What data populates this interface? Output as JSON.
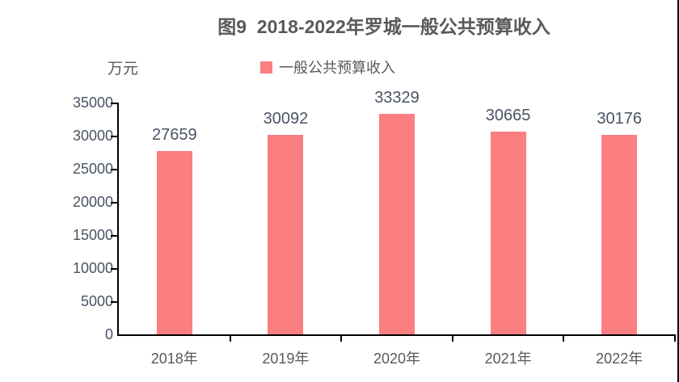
{
  "chart": {
    "title": "图9  2018-2022年罗城一般公共预算收入",
    "unit": "万元",
    "legend": "一般公共预算收入"
  },
  "chart_data": {
    "type": "bar",
    "title": "图9 2018-2022年罗城一般公共预算收入",
    "categories": [
      "2018年",
      "2019年",
      "2020年",
      "2021年",
      "2022年"
    ],
    "series": [
      {
        "name": "一般公共预算收入",
        "values": [
          27659,
          30092,
          33329,
          30665,
          30176
        ]
      }
    ],
    "xlabel": "",
    "ylabel": "万元",
    "ylim": [
      0,
      35000
    ],
    "y_ticks": [
      0,
      5000,
      10000,
      15000,
      20000,
      25000,
      30000,
      35000
    ],
    "grid": false,
    "legend_position": "top",
    "data_labels": true,
    "colors": {
      "bar": "#fb7e80",
      "axis": "#000000",
      "text": "#595959",
      "value_label": "#4a5362"
    }
  }
}
